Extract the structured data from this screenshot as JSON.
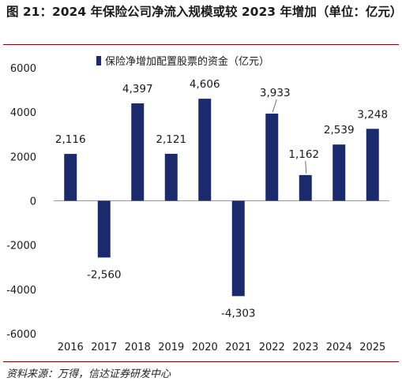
{
  "header": {
    "title": "图 21：2024 年保险公司净流入规模或较 2023 年增加（单位：亿元）"
  },
  "footer": {
    "source": "资料来源：万得，信达证券研发中心"
  },
  "colors": {
    "bar": "#1a2a6c",
    "rule": "#8b0000",
    "axis": "#999999",
    "text": "#1a1a1a"
  },
  "chart_data": {
    "type": "bar",
    "categories": [
      "2016",
      "2017",
      "2018",
      "2019",
      "2020",
      "2021",
      "2022",
      "2023",
      "2024",
      "2025"
    ],
    "series": [
      {
        "name": "保险净增加配置股票的资金（亿元）",
        "values": [
          2116,
          -2560,
          4397,
          2121,
          4606,
          -4303,
          3933,
          1162,
          2539,
          3248
        ],
        "data_labels": [
          "2,116",
          "-2,560",
          "4,397",
          "2,121",
          "4,606",
          "-4,303",
          "3,933",
          "1,162",
          "2,539",
          "3,248"
        ]
      }
    ],
    "ylim": [
      -6000,
      6000
    ],
    "yticks": [
      6000,
      4000,
      2000,
      0,
      -2000,
      -4000,
      -6000
    ],
    "ytick_labels": [
      "6000",
      "4000",
      "2000",
      "0",
      "-2000",
      "-4000",
      "-6000"
    ],
    "legend_position": "top-left",
    "grid": false
  }
}
